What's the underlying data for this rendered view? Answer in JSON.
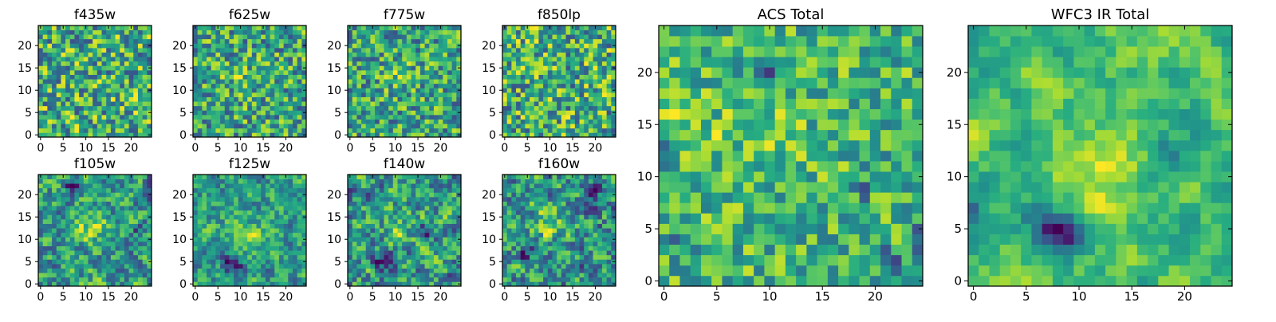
{
  "chart_data": [
    {
      "type": "heatmap",
      "title": "f435w",
      "grid_size": 25,
      "colorscale": "viridis",
      "xticks": [
        0,
        5,
        10,
        15,
        20
      ],
      "yticks": [
        0,
        5,
        10,
        15,
        20
      ],
      "seed": 11,
      "kind": "noise",
      "smooth": 0,
      "hotspots": [],
      "dark_spots": []
    },
    {
      "type": "heatmap",
      "title": "f625w",
      "grid_size": 25,
      "colorscale": "viridis",
      "xticks": [
        0,
        5,
        10,
        15,
        20
      ],
      "yticks": [
        0,
        5,
        10,
        15,
        20
      ],
      "seed": 23,
      "kind": "noise",
      "smooth": 0,
      "hotspots": [
        {
          "x": 11,
          "y": 13,
          "r": 3,
          "a": 0.15
        }
      ],
      "dark_spots": []
    },
    {
      "type": "heatmap",
      "title": "f775w",
      "grid_size": 25,
      "colorscale": "viridis",
      "xticks": [
        0,
        5,
        10,
        15,
        20
      ],
      "yticks": [
        0,
        5,
        10,
        15,
        20
      ],
      "seed": 37,
      "kind": "noise",
      "smooth": 0,
      "hotspots": [
        {
          "x": 11,
          "y": 13,
          "r": 3,
          "a": 0.15
        }
      ],
      "dark_spots": []
    },
    {
      "type": "heatmap",
      "title": "f850lp",
      "grid_size": 25,
      "colorscale": "viridis",
      "xticks": [
        0,
        5,
        10,
        15,
        20
      ],
      "yticks": [
        0,
        5,
        10,
        15,
        20
      ],
      "seed": 41,
      "kind": "noise",
      "smooth": 0,
      "hotspots": [],
      "dark_spots": []
    },
    {
      "type": "heatmap",
      "title": "f105w",
      "grid_size": 25,
      "colorscale": "viridis",
      "xticks": [
        0,
        5,
        10,
        15,
        20
      ],
      "yticks": [
        0,
        5,
        10,
        15,
        20
      ],
      "seed": 53,
      "kind": "smooth",
      "smooth": 1,
      "hotspots": [
        {
          "x": 11,
          "y": 13,
          "r": 3,
          "a": 0.22
        }
      ],
      "dark_spots": [
        {
          "x": 7,
          "y": 22,
          "r": 1.2,
          "a": 0.35
        },
        {
          "x": 22,
          "y": 12,
          "r": 1.2,
          "a": 0.3
        }
      ]
    },
    {
      "type": "heatmap",
      "title": "f125w",
      "grid_size": 25,
      "colorscale": "viridis",
      "xticks": [
        0,
        5,
        10,
        15,
        20
      ],
      "yticks": [
        0,
        5,
        10,
        15,
        20
      ],
      "seed": 67,
      "kind": "smooth",
      "smooth": 1,
      "hotspots": [
        {
          "x": 12,
          "y": 11,
          "r": 3,
          "a": 0.22
        }
      ],
      "dark_spots": [
        {
          "x": 8,
          "y": 5,
          "r": 1.5,
          "a": 0.5
        },
        {
          "x": 9,
          "y": 3,
          "r": 1.2,
          "a": 0.4
        }
      ]
    },
    {
      "type": "heatmap",
      "title": "f140w",
      "grid_size": 25,
      "colorscale": "viridis",
      "xticks": [
        0,
        5,
        10,
        15,
        20
      ],
      "yticks": [
        0,
        5,
        10,
        15,
        20
      ],
      "seed": 79,
      "kind": "smooth",
      "smooth": 1,
      "hotspots": [
        {
          "x": 12,
          "y": 13,
          "r": 3,
          "a": 0.2
        }
      ],
      "dark_spots": [
        {
          "x": 17,
          "y": 12,
          "r": 1.2,
          "a": 0.5
        },
        {
          "x": 7,
          "y": 5,
          "r": 1.0,
          "a": 0.35
        }
      ]
    },
    {
      "type": "heatmap",
      "title": "f160w",
      "grid_size": 25,
      "colorscale": "viridis",
      "xticks": [
        0,
        5,
        10,
        15,
        20
      ],
      "yticks": [
        0,
        5,
        10,
        15,
        20
      ],
      "seed": 97,
      "kind": "smooth",
      "smooth": 1,
      "hotspots": [
        {
          "x": 10,
          "y": 15,
          "r": 3.5,
          "a": 0.25
        }
      ],
      "dark_spots": [
        {
          "x": 19,
          "y": 20,
          "r": 1.2,
          "a": 0.45
        },
        {
          "x": 5,
          "y": 7,
          "r": 1.2,
          "a": 0.3
        }
      ]
    },
    {
      "type": "heatmap",
      "title": "ACS Total",
      "grid_size": 25,
      "colorscale": "viridis",
      "xticks": [
        0,
        5,
        10,
        15,
        20
      ],
      "yticks": [
        0,
        5,
        10,
        15,
        20
      ],
      "seed": 131,
      "kind": "acs",
      "smooth": 0,
      "hotspots": [
        {
          "x": 2,
          "y": 15,
          "r": 2.2,
          "a": 0.3
        },
        {
          "x": 10,
          "y": 13,
          "r": 3,
          "a": 0.2
        }
      ],
      "dark_spots": [
        {
          "x": 10,
          "y": 20,
          "r": 0.6,
          "a": 0.9
        },
        {
          "x": 19,
          "y": 9,
          "r": 0.6,
          "a": 0.9
        },
        {
          "x": 24,
          "y": 4,
          "r": 0.8,
          "a": 0.8
        },
        {
          "x": 21,
          "y": 2,
          "r": 0.8,
          "a": 0.8
        },
        {
          "x": 2,
          "y": 4,
          "r": 0.6,
          "a": 0.8
        },
        {
          "x": 0,
          "y": 12,
          "r": 0.7,
          "a": 0.7
        }
      ]
    },
    {
      "type": "heatmap",
      "title": "WFC3 IR Total",
      "grid_size": 25,
      "colorscale": "viridis",
      "xticks": [
        0,
        5,
        10,
        15,
        20
      ],
      "yticks": [
        0,
        5,
        10,
        15,
        20
      ],
      "seed": 149,
      "kind": "smooth",
      "smooth": 2,
      "hotspots": [
        {
          "x": 12,
          "y": 11,
          "r": 3,
          "a": 0.35
        }
      ],
      "dark_spots": [
        {
          "x": 7,
          "y": 5,
          "r": 1.4,
          "a": 0.8
        },
        {
          "x": 9,
          "y": 4,
          "r": 1.1,
          "a": 0.6
        },
        {
          "x": 18,
          "y": 12,
          "r": 1.2,
          "a": 0.45
        },
        {
          "x": 0,
          "y": 7,
          "r": 0.9,
          "a": 0.35
        },
        {
          "x": 20,
          "y": 5,
          "r": 1,
          "a": 0.25
        }
      ]
    }
  ]
}
